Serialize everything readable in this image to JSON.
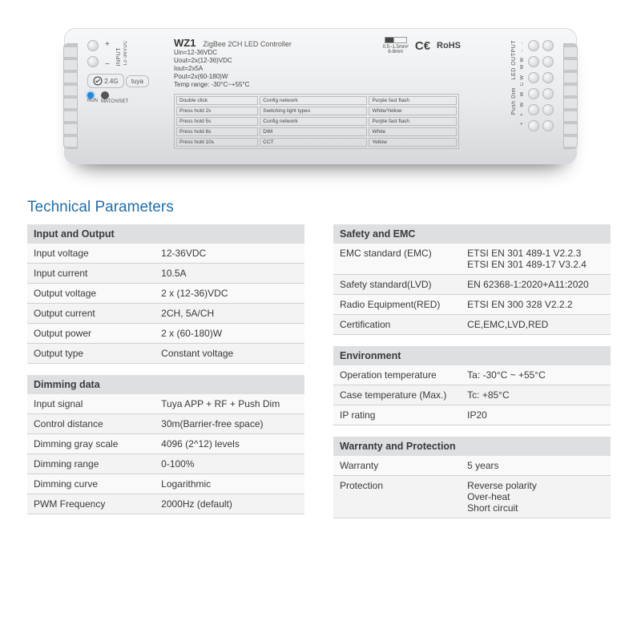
{
  "device": {
    "model": "WZ1",
    "subtitle": "ZigBee 2CH LED Controller",
    "specs": [
      "Uin=12-36VDC",
      "Uout=2x(12-36)VDC",
      "Iout=2x5A",
      "Pout=2x(60-180)W",
      "Temp range: -30°C~+55°C"
    ],
    "wire_spec_top": "0.5~1.5mm²",
    "wire_spec_bottom": "6-8mm",
    "ce": "C€",
    "rohs": "RoHS",
    "tuya": "tuya",
    "rf": "2.4G",
    "run": "RUN",
    "match": "MATCH/SET",
    "left_header": "INPUT",
    "left_volt": "12-36VDC",
    "right_header1": "LED OUTPUT",
    "right_header2": "Push Dim",
    "right_labels": "+ + W W CW WW - -",
    "mode_table": {
      "rows": [
        [
          "Double click",
          "Config network",
          "Purple fast flash"
        ],
        [
          "Press hold 2s",
          "Switching light types",
          "White/Yellow"
        ],
        [
          "Press hold 5s",
          "Config network",
          "Purple fast flash"
        ],
        [
          "Press hold 8s",
          "DIM",
          "White"
        ],
        [
          "Press hold 10s",
          "CCT",
          "Yellow"
        ]
      ]
    }
  },
  "section_title": "Technical Parameters",
  "blocks": {
    "io": {
      "title": "Input and Output",
      "rows": [
        [
          "Input voltage",
          "12-36VDC"
        ],
        [
          "Input current",
          "10.5A"
        ],
        [
          "Output voltage",
          "2 x (12-36)VDC"
        ],
        [
          "Output current",
          "2CH, 5A/CH"
        ],
        [
          "Output power",
          "2 x (60-180)W"
        ],
        [
          "Output type",
          "Constant voltage"
        ]
      ]
    },
    "dim": {
      "title": "Dimming data",
      "rows": [
        [
          "Input signal",
          "Tuya APP + RF + Push Dim"
        ],
        [
          "Control distance",
          "30m(Barrier-free space)"
        ],
        [
          "Dimming gray scale",
          "4096 (2^12) levels"
        ],
        [
          "Dimming range",
          "0-100%"
        ],
        [
          "Dimming curve",
          "Logarithmic"
        ],
        [
          "PWM Frequency",
          "2000Hz (default)"
        ]
      ]
    },
    "safety": {
      "title": "Safety and EMC",
      "rows": [
        [
          "EMC standard (EMC)",
          "ETSI EN 301 489-1 V2.2.3\nETSI EN 301 489-17 V3.2.4"
        ],
        [
          "Safety standard(LVD)",
          "EN 62368-1:2020+A11:2020"
        ],
        [
          "Radio Equipment(RED)",
          "ETSI EN 300 328 V2.2.2"
        ],
        [
          "Certification",
          "CE,EMC,LVD,RED"
        ]
      ]
    },
    "env": {
      "title": "Environment",
      "rows": [
        [
          "Operation temperature",
          "Ta: -30°C ~ +55°C"
        ],
        [
          "Case temperature (Max.)",
          "Tc: +85°C"
        ],
        [
          "IP rating",
          "IP20"
        ]
      ]
    },
    "war": {
      "title": "Warranty and Protection",
      "rows": [
        [
          "Warranty",
          "5 years"
        ],
        [
          "Protection",
          "Reverse polarity\nOver-heat\nShort circuit"
        ]
      ]
    }
  }
}
